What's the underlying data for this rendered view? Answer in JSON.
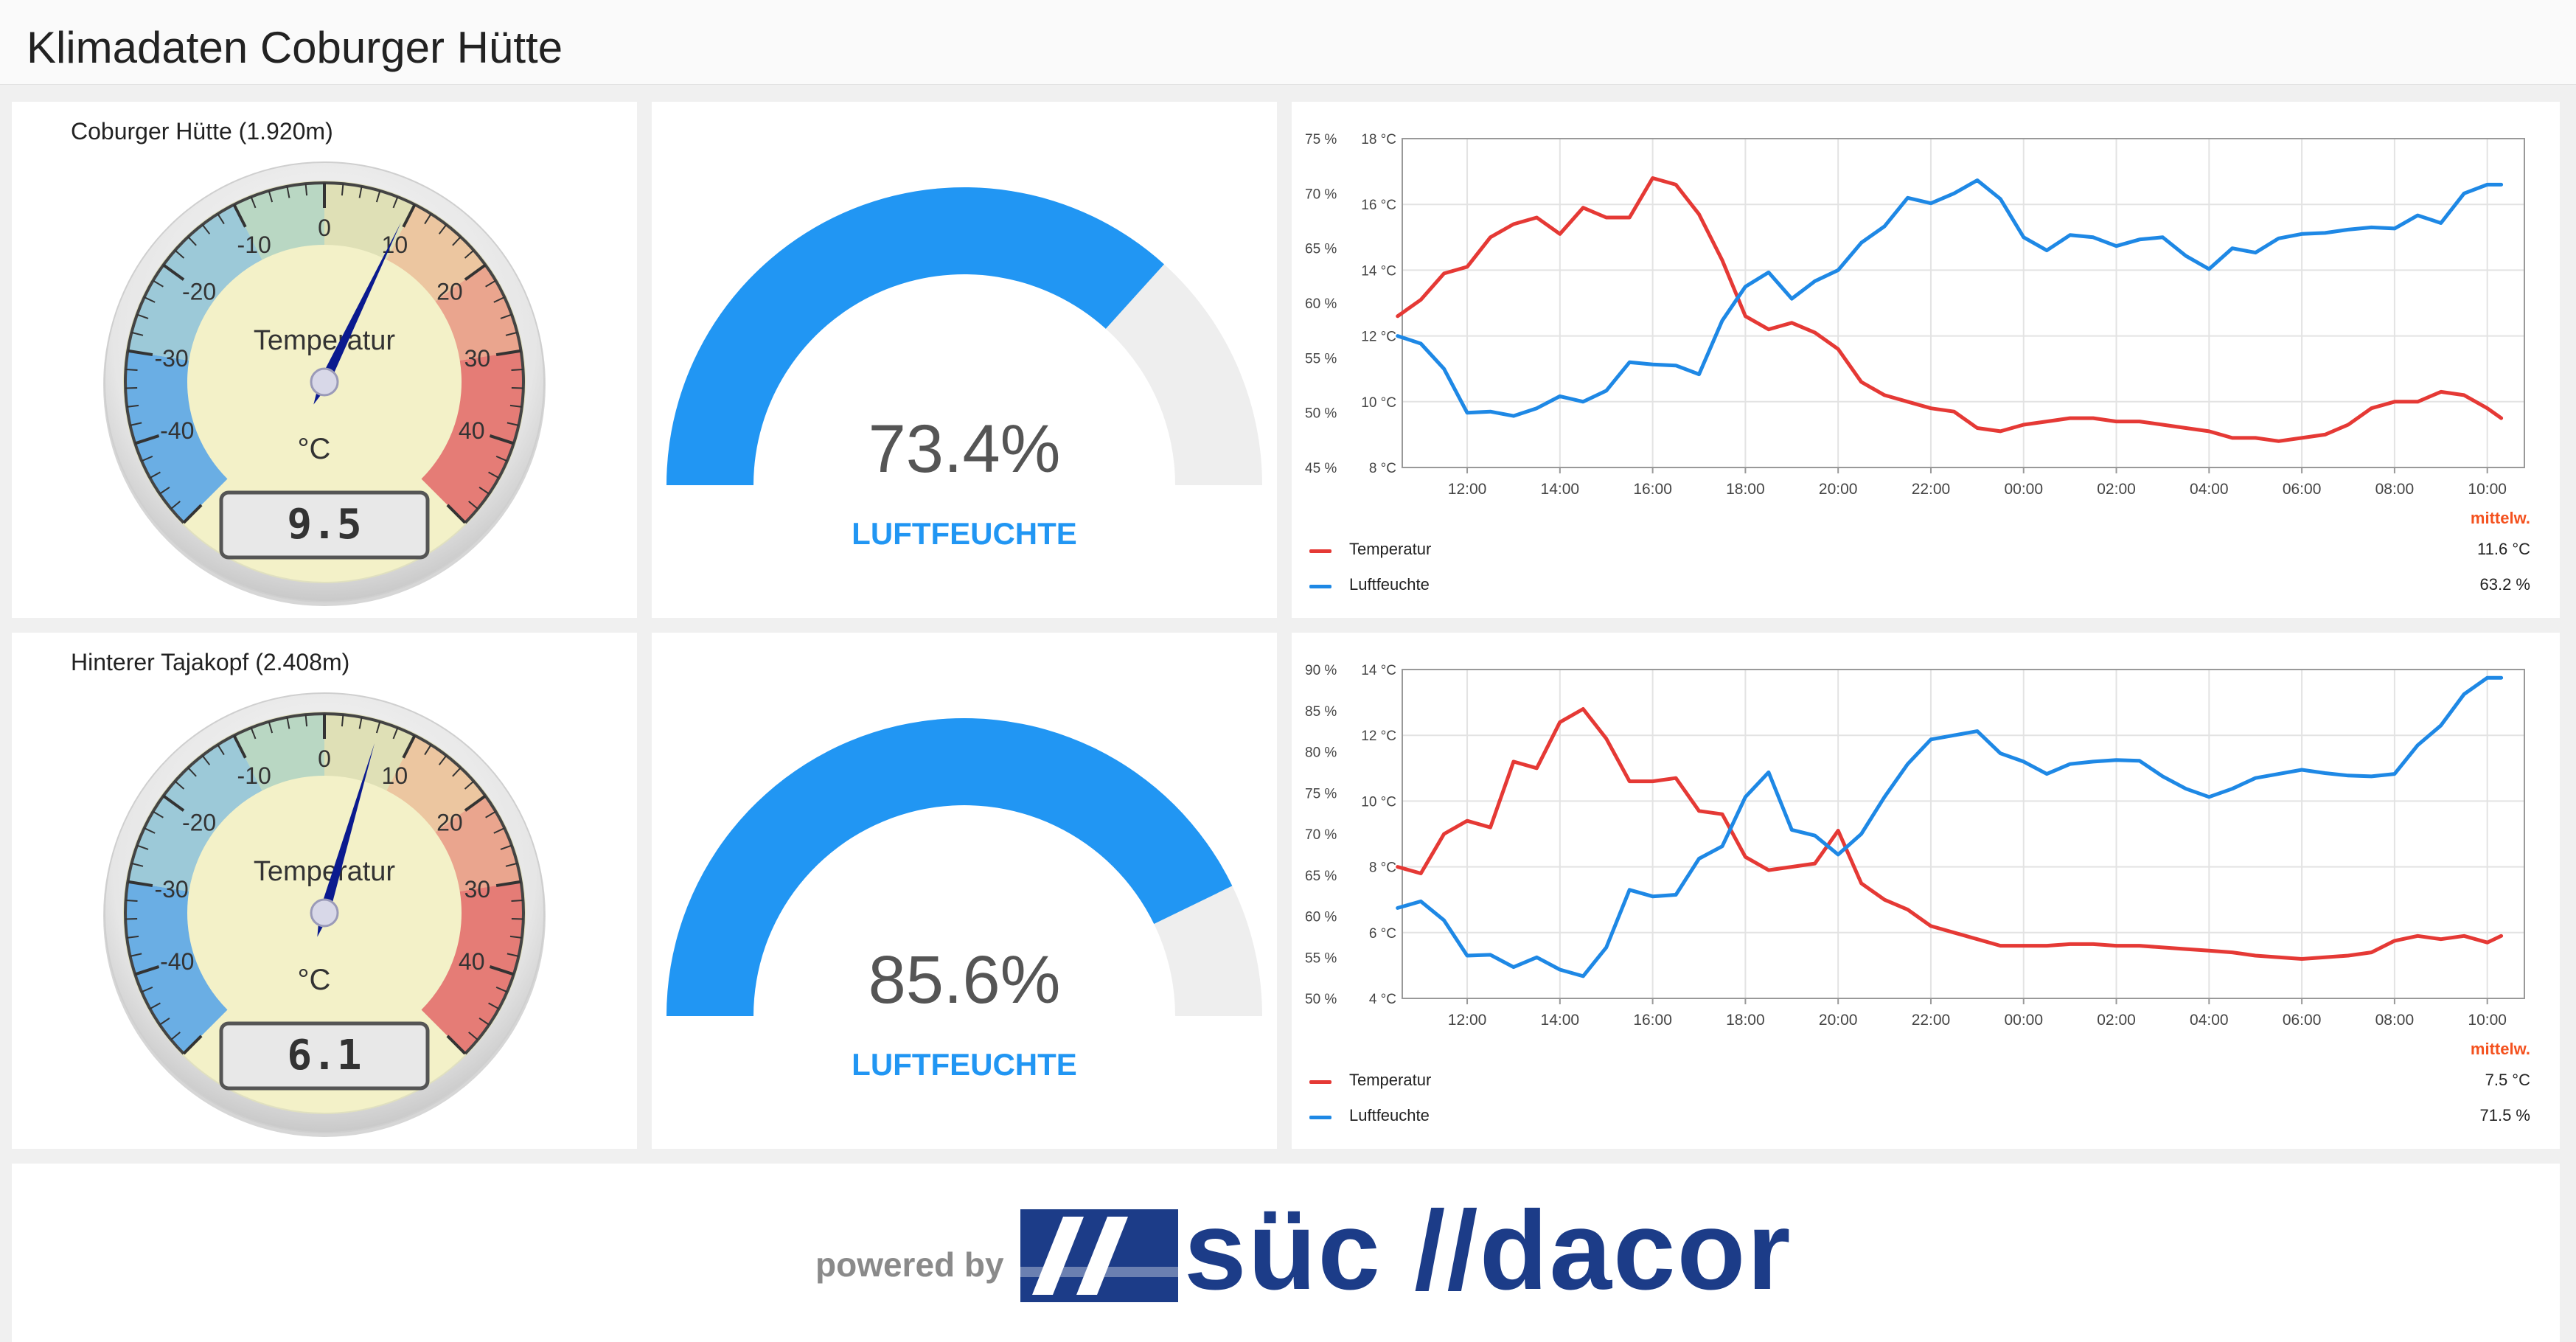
{
  "title": "Klimadaten Coburger Hütte",
  "stations": [
    {
      "name": "Coburger Hütte (1.920m)",
      "thermometer": {
        "label": "Temperatur",
        "unit": "°C",
        "value": 9.5,
        "value_text": "9.5",
        "min": -50,
        "max": 50,
        "ticks": [
          "-40",
          "-30",
          "-20",
          "-10",
          "0",
          "10",
          "20",
          "30",
          "40"
        ]
      },
      "humidity": {
        "value": 73.4,
        "value_text": "73.4%",
        "label": "LUFTFEUCHTE"
      },
      "chart_data": {
        "type": "line",
        "x_ticks": [
          "12:00",
          "14:00",
          "16:00",
          "18:00",
          "20:00",
          "22:00",
          "00:00",
          "02:00",
          "04:00",
          "06:00",
          "08:00",
          "10:00"
        ],
        "left_axis": {
          "ticks": [
            "45 %",
            "50 %",
            "55 %",
            "60 %",
            "65 %",
            "70 %",
            "75 %"
          ],
          "min": 45,
          "max": 75
        },
        "right_axis": {
          "ticks": [
            "8 °C",
            "10 °C",
            "12 °C",
            "14 °C",
            "16 °C",
            "18 °C"
          ],
          "min": 8,
          "max": 18
        },
        "x_range": [
          10.6,
          10.3
        ],
        "grid": true,
        "legend_header": "mittelw.",
        "series": [
          {
            "name": "Temperatur",
            "axis": "right",
            "color": "#e53935",
            "mean_text": "11.6 °C",
            "x": [
              10.5,
              11.0,
              11.5,
              12.0,
              12.5,
              13.0,
              13.5,
              14.0,
              14.5,
              15.0,
              15.5,
              16.0,
              16.5,
              17.0,
              17.5,
              18.0,
              18.5,
              19.0,
              19.5,
              20.0,
              20.5,
              21.0,
              21.5,
              22.0,
              22.5,
              23.0,
              23.5,
              24.0,
              24.5,
              25.0,
              25.5,
              26.0,
              26.5,
              27.0,
              27.5,
              28.0,
              28.5,
              29.0,
              29.5,
              30.0,
              30.5,
              31.0,
              31.5,
              32.0,
              32.5,
              33.0,
              33.5,
              34.0,
              34.3
            ],
            "y": [
              12.6,
              13.1,
              13.9,
              14.1,
              15.0,
              15.4,
              15.6,
              15.1,
              15.9,
              15.6,
              15.6,
              16.8,
              16.6,
              15.7,
              14.3,
              12.6,
              12.2,
              12.4,
              12.1,
              11.6,
              10.6,
              10.2,
              10.0,
              9.8,
              9.7,
              9.2,
              9.1,
              9.3,
              9.4,
              9.5,
              9.5,
              9.4,
              9.4,
              9.3,
              9.2,
              9.1,
              8.9,
              8.9,
              8.8,
              8.9,
              9.0,
              9.3,
              9.8,
              10.0,
              10.0,
              10.3,
              10.2,
              9.8,
              9.5
            ]
          },
          {
            "name": "Luftfeuchte",
            "axis": "left",
            "color": "#1e88e5",
            "mean_text": "63.2 %",
            "x": [
              10.5,
              11.0,
              11.5,
              12.0,
              12.5,
              13.0,
              13.5,
              14.0,
              14.5,
              15.0,
              15.5,
              16.0,
              16.5,
              17.0,
              17.5,
              18.0,
              18.5,
              19.0,
              19.5,
              20.0,
              20.5,
              21.0,
              21.5,
              22.0,
              22.5,
              23.0,
              23.5,
              24.0,
              24.5,
              25.0,
              25.5,
              26.0,
              26.5,
              27.0,
              27.5,
              28.0,
              28.5,
              29.0,
              29.5,
              30.0,
              30.5,
              31.0,
              31.5,
              32.0,
              32.5,
              33.0,
              33.5,
              34.0,
              34.3
            ],
            "y": [
              57.0,
              56.3,
              54.0,
              50.0,
              50.1,
              49.7,
              50.4,
              51.5,
              51.0,
              52.0,
              54.6,
              54.4,
              54.3,
              53.5,
              58.4,
              61.5,
              62.8,
              60.4,
              62.0,
              63.0,
              65.5,
              67.0,
              69.6,
              69.1,
              70.0,
              71.2,
              69.5,
              66.0,
              64.8,
              66.2,
              66.0,
              65.2,
              65.8,
              66.0,
              64.3,
              63.1,
              65.0,
              64.6,
              65.9,
              66.3,
              66.4,
              66.7,
              66.9,
              66.8,
              68.0,
              67.3,
              70.0,
              70.8,
              70.8
            ]
          }
        ]
      }
    },
    {
      "name": "Hinterer Tajakopf (2.408m)",
      "thermometer": {
        "label": "Temperatur",
        "unit": "°C",
        "value": 6.1,
        "value_text": "6.1",
        "min": -50,
        "max": 50,
        "ticks": [
          "-40",
          "-30",
          "-20",
          "-10",
          "0",
          "10",
          "20",
          "30",
          "40"
        ]
      },
      "humidity": {
        "value": 85.6,
        "value_text": "85.6%",
        "label": "LUFTFEUCHTE"
      },
      "chart_data": {
        "type": "line",
        "x_ticks": [
          "12:00",
          "14:00",
          "16:00",
          "18:00",
          "20:00",
          "22:00",
          "00:00",
          "02:00",
          "04:00",
          "06:00",
          "08:00",
          "10:00"
        ],
        "left_axis": {
          "ticks": [
            "50 %",
            "55 %",
            "60 %",
            "65 %",
            "70 %",
            "75 %",
            "80 %",
            "85 %",
            "90 %"
          ],
          "min": 50,
          "max": 90
        },
        "right_axis": {
          "ticks": [
            "4 °C",
            "6 °C",
            "8 °C",
            "10 °C",
            "12 °C",
            "14 °C"
          ],
          "min": 4,
          "max": 14
        },
        "x_range": [
          10.6,
          10.3
        ],
        "grid": true,
        "legend_header": "mittelw.",
        "series": [
          {
            "name": "Temperatur",
            "axis": "right",
            "color": "#e53935",
            "mean_text": "7.5 °C",
            "x": [
              10.5,
              11.0,
              11.5,
              12.0,
              12.5,
              13.0,
              13.5,
              14.0,
              14.5,
              15.0,
              15.5,
              16.0,
              16.5,
              17.0,
              17.5,
              18.0,
              18.5,
              19.0,
              19.5,
              20.0,
              20.5,
              21.0,
              21.5,
              22.0,
              22.5,
              23.0,
              23.5,
              24.0,
              24.5,
              25.0,
              25.5,
              26.0,
              26.5,
              27.0,
              27.5,
              28.0,
              28.5,
              29.0,
              29.5,
              30.0,
              30.5,
              31.0,
              31.5,
              32.0,
              32.5,
              33.0,
              33.5,
              34.0,
              34.3
            ],
            "y": [
              8.0,
              7.8,
              9.0,
              9.4,
              9.2,
              11.2,
              11.0,
              12.4,
              12.8,
              11.9,
              10.6,
              10.6,
              10.7,
              9.7,
              9.6,
              8.3,
              7.9,
              8.0,
              8.1,
              9.1,
              7.5,
              7.0,
              6.7,
              6.2,
              6.0,
              5.8,
              5.6,
              5.6,
              5.6,
              5.65,
              5.65,
              5.6,
              5.6,
              5.55,
              5.5,
              5.45,
              5.4,
              5.3,
              5.25,
              5.2,
              5.25,
              5.3,
              5.4,
              5.75,
              5.9,
              5.8,
              5.9,
              5.7,
              5.9
            ]
          },
          {
            "name": "Luftfeuchte",
            "axis": "left",
            "color": "#1e88e5",
            "mean_text": "71.5 %",
            "x": [
              10.5,
              11.0,
              11.5,
              12.0,
              12.5,
              13.0,
              13.5,
              14.0,
              14.5,
              15.0,
              15.5,
              16.0,
              16.5,
              17.0,
              17.5,
              18.0,
              18.5,
              19.0,
              19.5,
              20.0,
              20.5,
              21.0,
              21.5,
              22.0,
              22.5,
              23.0,
              23.5,
              24.0,
              24.5,
              25.0,
              25.5,
              26.0,
              26.5,
              27.0,
              27.5,
              28.0,
              28.5,
              29.0,
              29.5,
              30.0,
              30.5,
              31.0,
              31.5,
              32.0,
              32.5,
              33.0,
              33.5,
              34.0,
              34.3
            ],
            "y": [
              61.0,
              61.8,
              59.5,
              55.2,
              55.3,
              53.8,
              55.0,
              53.5,
              52.7,
              56.2,
              63.2,
              62.4,
              62.6,
              67.0,
              68.5,
              74.5,
              77.5,
              70.5,
              69.8,
              67.5,
              70.0,
              74.5,
              78.5,
              81.5,
              82.0,
              82.5,
              79.8,
              78.8,
              77.3,
              78.5,
              78.8,
              79.0,
              78.9,
              77.0,
              75.5,
              74.5,
              75.5,
              76.8,
              77.3,
              77.8,
              77.4,
              77.1,
              77.0,
              77.3,
              80.8,
              83.2,
              87.0,
              89.0,
              89.0
            ]
          }
        ]
      }
    }
  ],
  "footer": {
    "powered_by": "powered by",
    "logo_text": "süc //dacor"
  }
}
